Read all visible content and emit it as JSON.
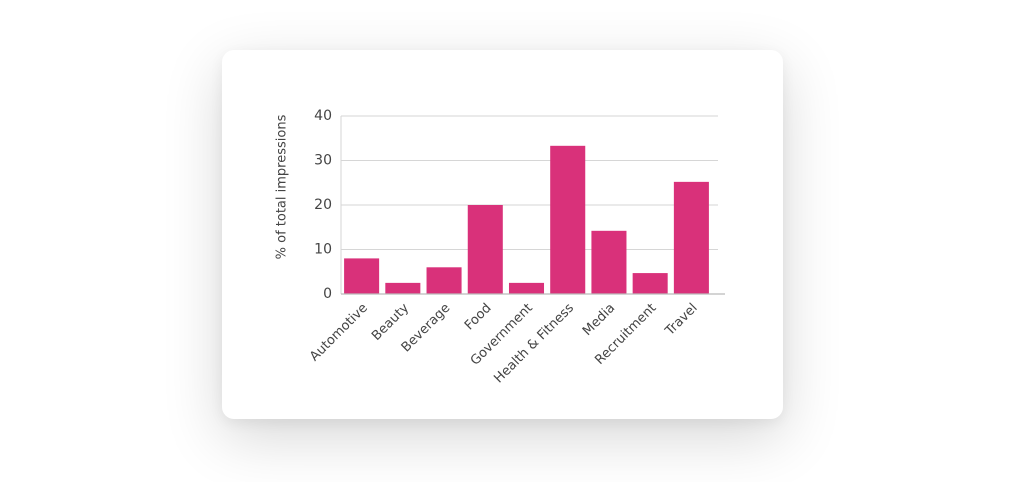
{
  "chart_data": {
    "type": "bar",
    "y_label": "% of total impressions",
    "categories": [
      "Automotive",
      "Beauty",
      "Beverage",
      "Food",
      "Government",
      "Health & Fitness",
      "Media",
      "Recruitment",
      "Travel"
    ],
    "values": [
      8,
      2.5,
      6,
      20,
      2.5,
      33.3,
      14.2,
      4.7,
      25.2
    ],
    "color": "#d9317a",
    "ylim": [
      0,
      40
    ],
    "yticks": [
      0,
      10,
      20,
      30,
      40
    ],
    "grid": true
  }
}
